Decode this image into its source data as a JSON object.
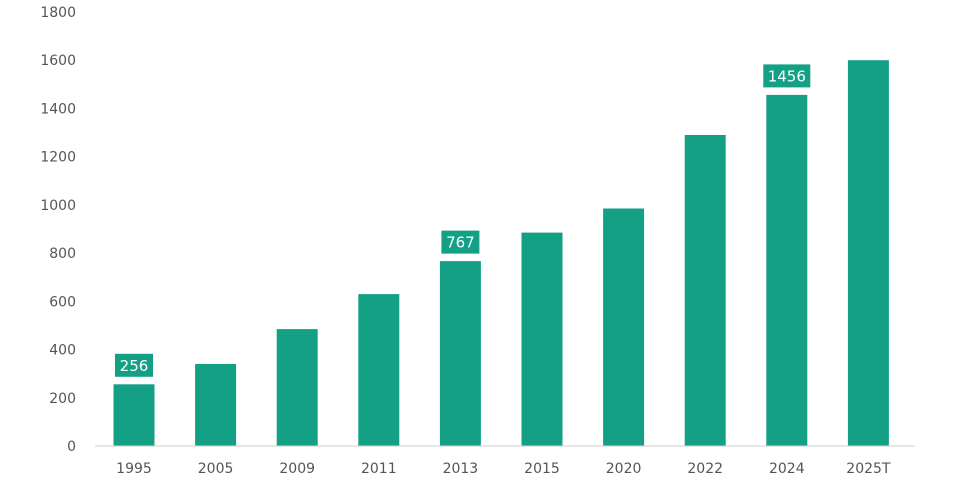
{
  "colors": {
    "bar": "#14a085",
    "axis": "#cfcfcf",
    "text": "#555555",
    "callout_text": "#ffffff"
  },
  "chart_data": {
    "type": "bar",
    "title": "",
    "xlabel": "",
    "ylabel": "",
    "ylim": [
      0,
      1800
    ],
    "y_ticks": [
      0,
      200,
      400,
      600,
      800,
      1000,
      1200,
      1400,
      1600,
      1800
    ],
    "categories": [
      "1995",
      "2005",
      "2009",
      "2011",
      "2013",
      "2015",
      "2020",
      "2022",
      "2024",
      "2025T"
    ],
    "values": [
      256,
      340,
      485,
      630,
      767,
      885,
      985,
      1290,
      1456,
      1600
    ],
    "data_labels": [
      {
        "index": 0,
        "text": "256"
      },
      {
        "index": 4,
        "text": "767"
      },
      {
        "index": 8,
        "text": "1456"
      }
    ],
    "grid": false,
    "legend": "none"
  }
}
